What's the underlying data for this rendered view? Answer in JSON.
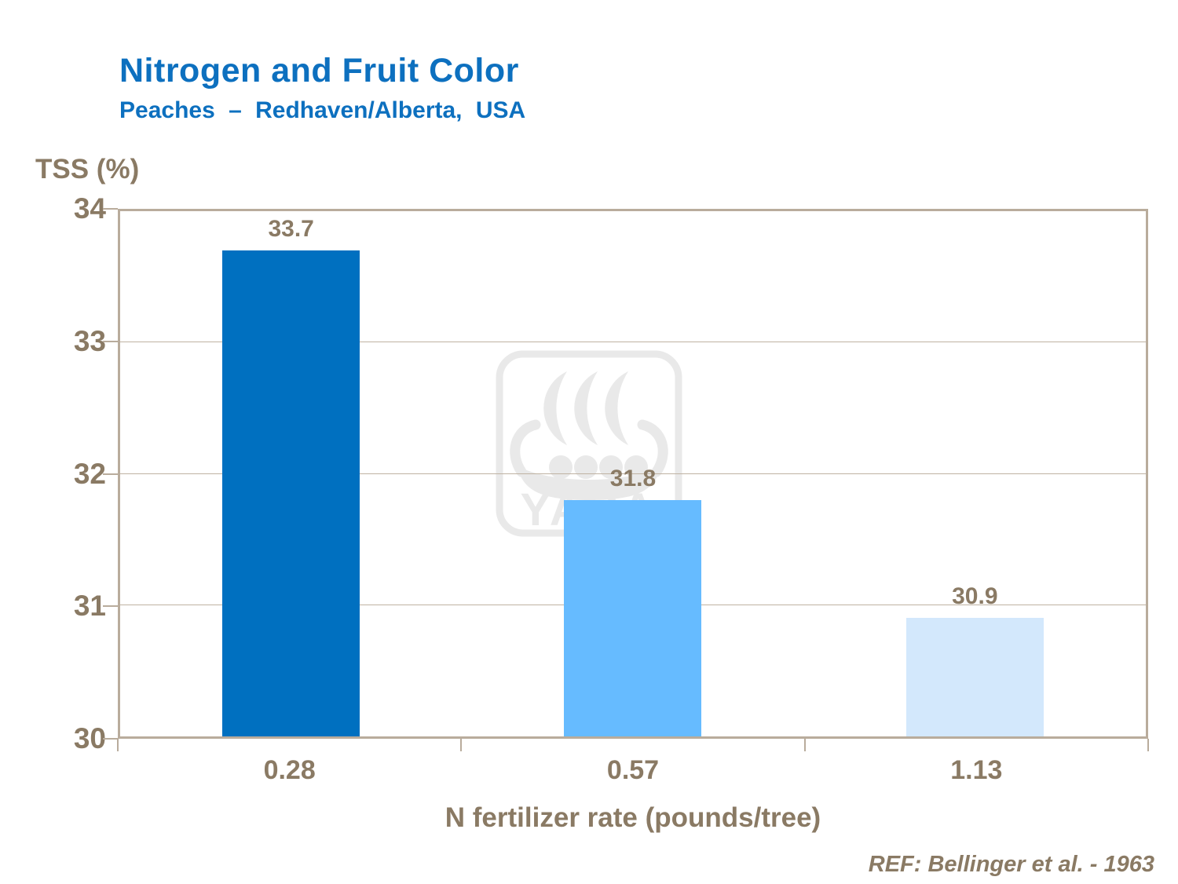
{
  "header": {
    "title": "Nitrogen and Fruit Color",
    "subtitle": "Peaches – Redhaven/Alberta,  USA"
  },
  "footer": {
    "ref": "REF: Bellinger et al. - 1963"
  },
  "watermark": {
    "name": "yara-viking-ship-logo",
    "text": "YARA",
    "color": "#e9e9e9"
  },
  "colors": {
    "title_blue": "#0d70bf",
    "text_brown": "#8a7a64",
    "axis_tan": "#b9ac9c",
    "gridline_tan": "#bfb2a2"
  },
  "chart_data": {
    "type": "bar",
    "categories": [
      "0.28",
      "0.57",
      "1.13"
    ],
    "values": [
      33.7,
      31.8,
      30.9
    ],
    "value_labels": [
      "33.7",
      "31.8",
      "30.9"
    ],
    "bar_colors": [
      "#0070c0",
      "#66bbff",
      "#d3e8fc"
    ],
    "title": "Nitrogen and Fruit Color",
    "subtitle": "Peaches – Redhaven/Alberta,  USA",
    "xlabel": "N fertilizer rate (pounds/tree)",
    "ylabel": "TSS (%)",
    "ylim": [
      30,
      34
    ],
    "yticks": [
      34,
      33,
      32,
      31,
      30
    ],
    "gridlines_at": [
      31,
      32,
      33
    ],
    "grid": "horizontal",
    "legend": "none"
  }
}
